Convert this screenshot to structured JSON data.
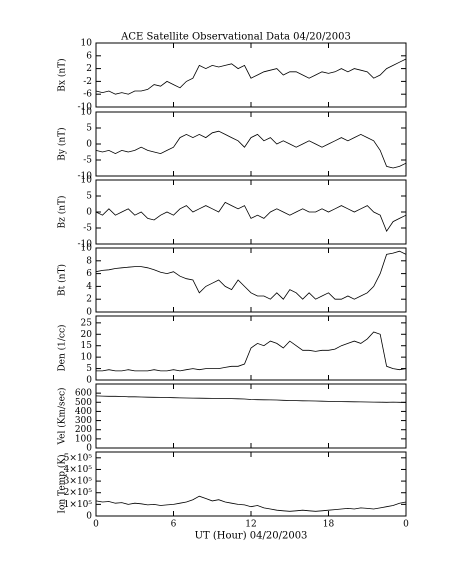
{
  "chart_data": [
    {
      "type": "line",
      "title": "ACE Satellite Observational Data  04/20/2003",
      "ylabel": "Bx (nT)",
      "color": "#000000",
      "xlim": [
        0,
        24
      ],
      "ylim": [
        -10,
        10
      ],
      "yticks": [
        -10,
        -6,
        -2,
        2,
        6,
        10
      ],
      "x": [
        0,
        0.5,
        1,
        1.5,
        2,
        2.5,
        3,
        3.5,
        4,
        4.5,
        5,
        5.5,
        6,
        6.5,
        7,
        7.5,
        8,
        8.5,
        9,
        9.5,
        10,
        10.5,
        11,
        11.5,
        12,
        12.5,
        13,
        13.5,
        14,
        14.5,
        15,
        15.5,
        16,
        16.5,
        17,
        17.5,
        18,
        18.5,
        19,
        19.5,
        20,
        20.5,
        21,
        21.5,
        22,
        22.5,
        23,
        23.5,
        24
      ],
      "values": [
        -5,
        -5.5,
        -5,
        -6,
        -5.5,
        -6,
        -5,
        -5,
        -4.5,
        -3,
        -3.5,
        -2,
        -3,
        -4,
        -2,
        -1,
        3,
        2,
        3,
        2.5,
        3,
        3.5,
        2,
        3,
        -1,
        0,
        1,
        1.5,
        2,
        0,
        1,
        1,
        0,
        -1,
        0,
        1,
        0.5,
        1,
        2,
        1,
        2,
        1.5,
        1,
        -1,
        0,
        2,
        3,
        4,
        5
      ]
    },
    {
      "type": "line",
      "ylabel": "By (nT)",
      "color": "#000000",
      "xlim": [
        0,
        24
      ],
      "ylim": [
        -10,
        10
      ],
      "yticks": [
        -10,
        -5,
        0,
        5,
        10
      ],
      "x": [
        0,
        0.5,
        1,
        1.5,
        2,
        2.5,
        3,
        3.5,
        4,
        4.5,
        5,
        5.5,
        6,
        6.5,
        7,
        7.5,
        8,
        8.5,
        9,
        9.5,
        10,
        10.5,
        11,
        11.5,
        12,
        12.5,
        13,
        13.5,
        14,
        14.5,
        15,
        15.5,
        16,
        16.5,
        17,
        17.5,
        18,
        18.5,
        19,
        19.5,
        20,
        20.5,
        21,
        21.5,
        22,
        22.5,
        23,
        23.5,
        24
      ],
      "values": [
        -2,
        -2.5,
        -2,
        -3,
        -2,
        -2.5,
        -2,
        -1,
        -2,
        -2.5,
        -3,
        -2,
        -1,
        2,
        3,
        2,
        3,
        2,
        3.5,
        4,
        3,
        2,
        1,
        -1,
        2,
        3,
        1,
        2,
        0,
        1,
        0,
        -1,
        0,
        1,
        0,
        -1,
        0,
        1,
        2,
        1,
        2,
        3,
        2,
        1,
        -2,
        -7,
        -7.5,
        -7,
        -6
      ]
    },
    {
      "type": "line",
      "ylabel": "Bz (nT)",
      "color": "#000000",
      "xlim": [
        0,
        24
      ],
      "ylim": [
        -10,
        10
      ],
      "yticks": [
        -10,
        -5,
        0,
        5,
        10
      ],
      "x": [
        0,
        0.5,
        1,
        1.5,
        2,
        2.5,
        3,
        3.5,
        4,
        4.5,
        5,
        5.5,
        6,
        6.5,
        7,
        7.5,
        8,
        8.5,
        9,
        9.5,
        10,
        10.5,
        11,
        11.5,
        12,
        12.5,
        13,
        13.5,
        14,
        14.5,
        15,
        15.5,
        16,
        16.5,
        17,
        17.5,
        18,
        18.5,
        19,
        19.5,
        20,
        20.5,
        21,
        21.5,
        22,
        22.5,
        23,
        23.5,
        24
      ],
      "values": [
        0,
        -1,
        1,
        -1,
        0,
        1,
        -1,
        0,
        -2,
        -2.5,
        -1,
        0,
        -1,
        1,
        2,
        0,
        1,
        2,
        1,
        0,
        3,
        2,
        1,
        2,
        -2,
        -1,
        -2,
        0,
        1,
        0,
        -1,
        0,
        1,
        0,
        0,
        1,
        0,
        1,
        2,
        1,
        0,
        1,
        2,
        0,
        -1,
        -6,
        -3,
        -2,
        -1
      ]
    },
    {
      "type": "line",
      "ylabel": "Bt (nT)",
      "color": "#000000",
      "xlim": [
        0,
        24
      ],
      "ylim": [
        0,
        10
      ],
      "yticks": [
        0,
        2,
        4,
        6,
        8,
        10
      ],
      "x": [
        0,
        0.5,
        1,
        1.5,
        2,
        2.5,
        3,
        3.5,
        4,
        4.5,
        5,
        5.5,
        6,
        6.5,
        7,
        7.5,
        8,
        8.5,
        9,
        9.5,
        10,
        10.5,
        11,
        11.5,
        12,
        12.5,
        13,
        13.5,
        14,
        14.5,
        15,
        15.5,
        16,
        16.5,
        17,
        17.5,
        18,
        18.5,
        19,
        19.5,
        20,
        20.5,
        21,
        21.5,
        22,
        22.5,
        23,
        23.5,
        24
      ],
      "values": [
        6.3,
        6.5,
        6.6,
        6.8,
        6.9,
        7,
        7.1,
        7.1,
        6.9,
        6.6,
        6.2,
        6,
        6.3,
        5.6,
        5.2,
        5,
        3,
        4,
        4.5,
        5,
        4,
        3.5,
        5,
        4,
        3,
        2.5,
        2.5,
        2,
        3,
        2,
        3.5,
        3,
        2,
        3,
        2,
        2.5,
        3,
        2,
        2,
        2.5,
        2,
        2.5,
        3,
        4,
        6,
        9,
        9.2,
        9.5,
        9
      ]
    },
    {
      "type": "line",
      "ylabel": "Den (1/cc)",
      "color": "#000000",
      "xlim": [
        0,
        24
      ],
      "ylim": [
        0,
        28
      ],
      "yticks": [
        0,
        5,
        10,
        15,
        20,
        25
      ],
      "x": [
        0,
        0.5,
        1,
        1.5,
        2,
        2.5,
        3,
        3.5,
        4,
        4.5,
        5,
        5.5,
        6,
        6.5,
        7,
        7.5,
        8,
        8.5,
        9,
        9.5,
        10,
        10.5,
        11,
        11.5,
        12,
        12.5,
        13,
        13.5,
        14,
        14.5,
        15,
        15.5,
        16,
        16.5,
        17,
        17.5,
        18,
        18.5,
        19,
        19.5,
        20,
        20.5,
        21,
        21.5,
        22,
        22.5,
        23,
        23.5,
        24
      ],
      "values": [
        4,
        4,
        4.5,
        4,
        4,
        4.5,
        4,
        4,
        4,
        4.5,
        4,
        4,
        4.5,
        4,
        4.5,
        5,
        4.5,
        5,
        5,
        5,
        5.5,
        6,
        6,
        7,
        14,
        16,
        15,
        17,
        16,
        14,
        17,
        15,
        13,
        13,
        12.5,
        13,
        13,
        13.5,
        15,
        16,
        17,
        16,
        18,
        21,
        20,
        6,
        5,
        4.5,
        5
      ]
    },
    {
      "type": "line",
      "ylabel": "Vel (Km/sec)",
      "color": "#000000",
      "xlim": [
        0,
        24
      ],
      "ylim": [
        0,
        700
      ],
      "yticks": [
        0,
        100,
        200,
        300,
        400,
        500,
        600
      ],
      "x": [
        0,
        0.5,
        1,
        1.5,
        2,
        2.5,
        3,
        3.5,
        4,
        4.5,
        5,
        5.5,
        6,
        6.5,
        7,
        7.5,
        8,
        8.5,
        9,
        9.5,
        10,
        10.5,
        11,
        11.5,
        12,
        12.5,
        13,
        13.5,
        14,
        14.5,
        15,
        15.5,
        16,
        16.5,
        17,
        17.5,
        18,
        18.5,
        19,
        19.5,
        20,
        20.5,
        21,
        21.5,
        22,
        22.5,
        23,
        23.5,
        24
      ],
      "values": [
        570,
        568,
        566,
        565,
        563,
        560,
        560,
        558,
        556,
        555,
        553,
        552,
        550,
        548,
        547,
        546,
        545,
        544,
        543,
        542,
        541,
        540,
        538,
        536,
        530,
        528,
        527,
        526,
        525,
        522,
        520,
        518,
        516,
        515,
        514,
        512,
        510,
        508,
        507,
        506,
        505,
        504,
        503,
        502,
        501,
        500,
        502,
        500,
        498
      ]
    },
    {
      "type": "line",
      "ylabel": "Ion Temp (K)",
      "xlabel": "UT (Hour)  04/20/2003",
      "color": "#000000",
      "xlim": [
        0,
        24
      ],
      "ylim": [
        0,
        550000
      ],
      "yticks": [
        0,
        {
          "value": 100000,
          "label": "1×10⁵"
        },
        {
          "value": 200000,
          "label": "2×10⁵"
        },
        {
          "value": 300000,
          "label": "3×10⁵"
        },
        {
          "value": 400000,
          "label": "4×10⁵"
        },
        {
          "value": 500000,
          "label": "5×10⁵"
        }
      ],
      "xticks": [
        0,
        6,
        12,
        {
          "value": 18,
          "label": "18"
        },
        {
          "value": 24,
          "label": "0"
        }
      ],
      "x": [
        0,
        0.5,
        1,
        1.5,
        2,
        2.5,
        3,
        3.5,
        4,
        4.5,
        5,
        5.5,
        6,
        6.5,
        7,
        7.5,
        8,
        8.5,
        9,
        9.5,
        10,
        10.5,
        11,
        11.5,
        12,
        12.5,
        13,
        13.5,
        14,
        14.5,
        15,
        15.5,
        16,
        16.5,
        17,
        17.5,
        18,
        18.5,
        19,
        19.5,
        20,
        20.5,
        21,
        21.5,
        22,
        22.5,
        23,
        23.5,
        24
      ],
      "values": [
        130000,
        120000,
        125000,
        110000,
        115000,
        100000,
        110000,
        105000,
        95000,
        100000,
        90000,
        95000,
        100000,
        110000,
        120000,
        140000,
        170000,
        150000,
        130000,
        140000,
        120000,
        110000,
        100000,
        95000,
        80000,
        90000,
        70000,
        60000,
        50000,
        45000,
        40000,
        45000,
        50000,
        45000,
        40000,
        45000,
        50000,
        55000,
        60000,
        65000,
        60000,
        70000,
        65000,
        60000,
        70000,
        80000,
        90000,
        110000,
        120000
      ]
    }
  ]
}
